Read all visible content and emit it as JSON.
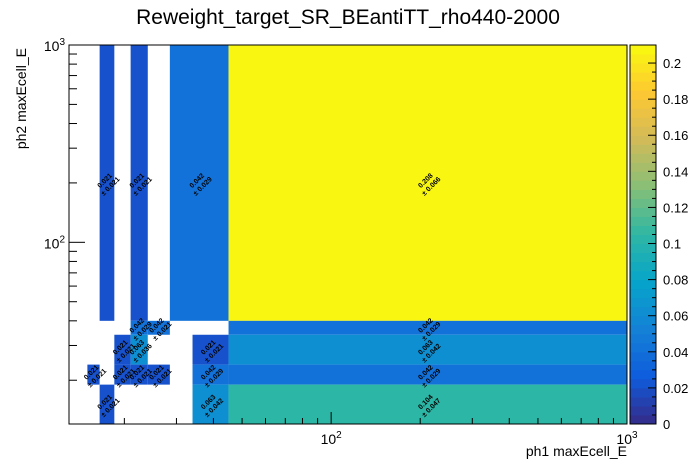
{
  "chart_data": {
    "type": "heatmap",
    "title": "Reweight_target_SR_BEantiTT_rho440-2000",
    "xlabel": "ph1 maxEcell_E",
    "ylabel": "ph2 maxEcell_E",
    "x_scale": "log",
    "y_scale": "log",
    "xlim": [
      13,
      1000
    ],
    "ylim": [
      12,
      1000
    ],
    "x_ticks": [
      {
        "value": 100,
        "base": "10",
        "exp": "2"
      },
      {
        "value": 1000,
        "base": "10",
        "exp": "3"
      }
    ],
    "y_ticks": [
      {
        "value": 100,
        "base": "10",
        "exp": "2"
      },
      {
        "value": 1000,
        "base": "10",
        "exp": "3"
      }
    ],
    "z_range": [
      0,
      0.21
    ],
    "z_ticks": [
      "0",
      "0.02",
      "0.04",
      "0.06",
      "0.08",
      "0.1",
      "0.12",
      "0.14",
      "0.16",
      "0.18",
      "0.2"
    ],
    "colorbar_colors": [
      "#352a87",
      "#0f5cdd",
      "#1481d6",
      "#06a4ca",
      "#2eb7a4",
      "#87bf77",
      "#d1bb59",
      "#fec832",
      "#f9fb0e"
    ],
    "cells": [
      {
        "x0": 16.5,
        "x1": 18.5,
        "y0": 40,
        "y1": 1000,
        "value": 0.021,
        "value_label": "0.021",
        "error_label": "± 0.021"
      },
      {
        "x0": 21,
        "x1": 24,
        "y0": 40,
        "y1": 1000,
        "value": 0.021,
        "value_label": "0.021",
        "error_label": "± 0.021"
      },
      {
        "x0": 28.5,
        "x1": 45,
        "y0": 40,
        "y1": 1000,
        "value": 0.042,
        "value_label": "0.042",
        "error_label": "± 0.029"
      },
      {
        "x0": 45,
        "x1": 1000,
        "y0": 40,
        "y1": 1000,
        "value": 0.208,
        "value_label": "0.208",
        "error_label": "± 0.066"
      },
      {
        "x0": 24,
        "x1": 28.5,
        "y0": 34,
        "y1": 40,
        "value": 0.042,
        "value_label": "0.042",
        "error_label": "± 0.021"
      },
      {
        "x0": 21,
        "x1": 24,
        "y0": 34,
        "y1": 40,
        "value": 0.042,
        "value_label": "0.042",
        "error_label": "± 0.029"
      },
      {
        "x0": 45,
        "x1": 1000,
        "y0": 34,
        "y1": 40,
        "value": 0.042,
        "value_label": "0.042",
        "error_label": "± 0.029"
      },
      {
        "x0": 18.5,
        "x1": 21,
        "y0": 24,
        "y1": 34,
        "value": 0.021,
        "value_label": "0.021",
        "error_label": "± 0.021"
      },
      {
        "x0": 21,
        "x1": 24,
        "y0": 24,
        "y1": 34,
        "value": 0.063,
        "value_label": "0.063",
        "error_label": "± 0.036"
      },
      {
        "x0": 34,
        "x1": 45,
        "y0": 24,
        "y1": 34,
        "value": 0.021,
        "value_label": "0.021",
        "error_label": "± 0.021"
      },
      {
        "x0": 45,
        "x1": 1000,
        "y0": 24,
        "y1": 34,
        "value": 0.063,
        "value_label": "0.063",
        "error_label": "± 0.042"
      },
      {
        "x0": 15,
        "x1": 16.5,
        "y0": 19,
        "y1": 24,
        "value": 0.021,
        "value_label": "0.021",
        "error_label": "± 0.021"
      },
      {
        "x0": 18.5,
        "x1": 21,
        "y0": 19,
        "y1": 24,
        "value": 0.021,
        "value_label": "0.021",
        "error_label": "± 0.021"
      },
      {
        "x0": 21,
        "x1": 24,
        "y0": 19,
        "y1": 24,
        "value": 0.021,
        "value_label": "0.021",
        "error_label": "± 0.021"
      },
      {
        "x0": 24,
        "x1": 28.5,
        "y0": 19,
        "y1": 24,
        "value": 0.021,
        "value_label": "0.021",
        "error_label": "± 0.021"
      },
      {
        "x0": 34,
        "x1": 45,
        "y0": 19,
        "y1": 24,
        "value": 0.042,
        "value_label": "0.042",
        "error_label": "± 0.029"
      },
      {
        "x0": 45,
        "x1": 1000,
        "y0": 19,
        "y1": 24,
        "value": 0.042,
        "value_label": "0.042",
        "error_label": "± 0.029"
      },
      {
        "x0": 16.5,
        "x1": 18.5,
        "y0": 12,
        "y1": 19,
        "value": 0.021,
        "value_label": "0.021",
        "error_label": "± 0.021"
      },
      {
        "x0": 34,
        "x1": 45,
        "y0": 12,
        "y1": 19,
        "value": 0.063,
        "value_label": "0.063",
        "error_label": "± 0.042"
      },
      {
        "x0": 45,
        "x1": 1000,
        "y0": 12,
        "y1": 19,
        "value": 0.104,
        "value_label": "0.104",
        "error_label": "± 0.047"
      }
    ]
  }
}
